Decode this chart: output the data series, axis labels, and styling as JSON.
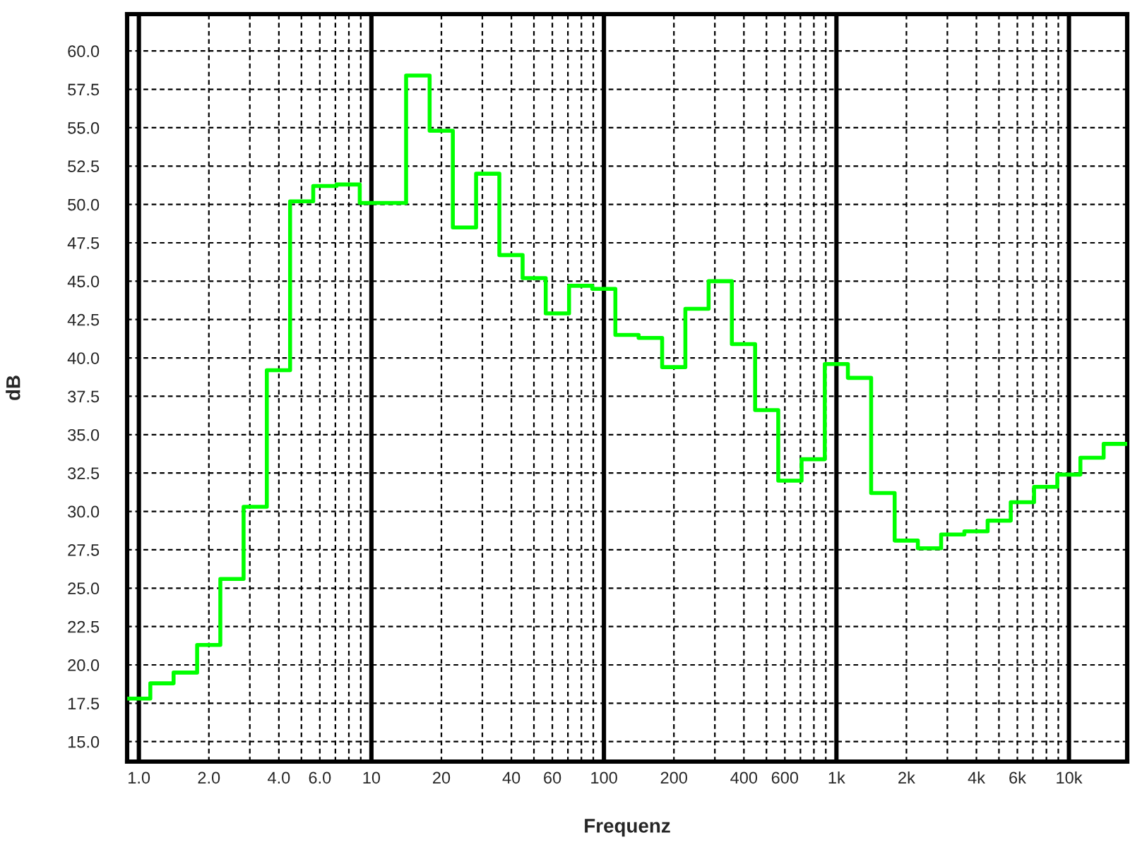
{
  "chart_data": {
    "type": "histogram",
    "xlabel": "Frequenz",
    "ylabel": "dB",
    "bins": [
      0.891,
      1.12,
      1.41,
      1.78,
      2.24,
      2.82,
      3.55,
      4.47,
      5.62,
      7.08,
      8.91,
      11.2,
      14.1,
      17.8,
      22.4,
      28.2,
      35.5,
      44.7,
      56.2,
      70.8,
      89.1,
      112,
      141,
      178,
      224,
      282,
      355,
      447,
      562,
      708,
      891,
      1120,
      1410,
      1780,
      2240,
      2820,
      3550,
      4470,
      5620,
      7080,
      8910,
      11200,
      14100,
      17800
    ],
    "values": [
      17.8,
      18.8,
      19.5,
      21.3,
      25.6,
      30.3,
      39.2,
      50.2,
      51.2,
      51.3,
      50.1,
      50.1,
      58.4,
      54.8,
      48.5,
      52.0,
      46.7,
      45.2,
      42.9,
      44.7,
      44.5,
      41.5,
      41.3,
      39.4,
      43.2,
      45.0,
      40.9,
      36.6,
      32.0,
      33.4,
      39.6,
      38.7,
      31.2,
      28.1,
      27.6,
      28.5,
      28.7,
      29.4,
      30.6,
      31.6,
      32.4,
      33.5,
      34.4
    ],
    "color": "#00ff00",
    "log": "x",
    "xlim": [
      0.89,
      17800
    ],
    "xticks": [
      {
        "value": 1,
        "label": "1.0"
      },
      {
        "value": 2,
        "label": "2.0"
      },
      {
        "value": 3,
        "label": null
      },
      {
        "value": 4,
        "label": "4.0"
      },
      {
        "value": 5,
        "label": null
      },
      {
        "value": 6,
        "label": "6.0"
      },
      {
        "value": 7,
        "label": null
      },
      {
        "value": 8,
        "label": null
      },
      {
        "value": 9,
        "label": null
      },
      10,
      20,
      {
        "value": 30,
        "label": null
      },
      40,
      {
        "value": 50,
        "label": null
      },
      60,
      {
        "value": 70,
        "label": null
      },
      {
        "value": 80,
        "label": null
      },
      {
        "value": 90,
        "label": null
      },
      100,
      200,
      {
        "value": 300,
        "label": null
      },
      400,
      {
        "value": 500,
        "label": null
      },
      600,
      {
        "value": 700,
        "label": null
      },
      {
        "value": 800,
        "label": null
      },
      {
        "value": 900,
        "label": null
      },
      {
        "value": 1000,
        "label": "1k"
      },
      {
        "value": 2000,
        "label": "2k"
      },
      {
        "value": 3000,
        "label": null
      },
      {
        "value": 4000,
        "label": "4k"
      },
      {
        "value": 5000,
        "label": null
      },
      {
        "value": 6000,
        "label": "6k"
      },
      {
        "value": 7000,
        "label": null
      },
      {
        "value": 8000,
        "label": null
      },
      {
        "value": 9000,
        "label": null
      },
      {
        "value": 10000,
        "label": "10k"
      }
    ],
    "ylim": [
      13.7,
      62.4
    ],
    "yticks": [
      {
        "value": 15,
        "label": "15.0"
      },
      17.5,
      {
        "value": 20,
        "label": "20.0"
      },
      22.5,
      {
        "value": 25,
        "label": "25.0"
      },
      27.5,
      {
        "value": 30,
        "label": "30.0"
      },
      32.5,
      {
        "value": 35,
        "label": "35.0"
      },
      37.5,
      {
        "value": 40,
        "label": "40.0"
      },
      42.5,
      {
        "value": 45,
        "label": "45.0"
      },
      47.5,
      {
        "value": 50,
        "label": "50.0"
      },
      52.5,
      {
        "value": 55,
        "label": "55.0"
      },
      57.5,
      {
        "value": 60,
        "label": "60.0"
      }
    ],
    "grid": true
  }
}
